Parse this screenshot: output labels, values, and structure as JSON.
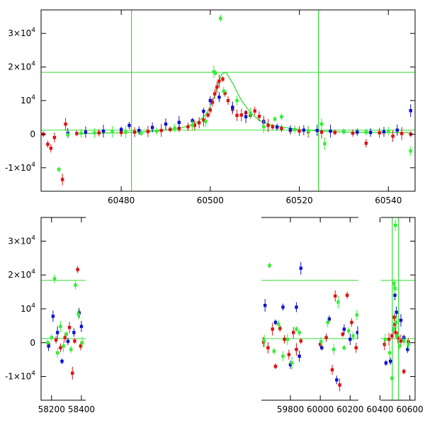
{
  "chart_data": [
    {
      "type": "scatter",
      "title": "",
      "xlabel": "",
      "ylabel": "",
      "xlim": [
        60462,
        60546
      ],
      "ylim": [
        -17000,
        37000
      ],
      "grid": false,
      "x_ticks": [
        {
          "value": 60480,
          "label": "60480"
        },
        {
          "value": 60500,
          "label": "60500"
        },
        {
          "value": 60520,
          "label": "60520"
        },
        {
          "value": 60540,
          "label": "60540"
        }
      ],
      "y_ticks": [
        {
          "value": 30000,
          "label": "3×10",
          "exp": "4"
        },
        {
          "value": 20000,
          "label": "2×10",
          "exp": "4"
        },
        {
          "value": 10000,
          "label": "10",
          "exp": "4"
        },
        {
          "value": 0,
          "label": "0",
          "exp": ""
        },
        {
          "value": -10000,
          "label": "-1×10",
          "exp": "4"
        }
      ],
      "reference_lines": {
        "vertical": [
          60482.3,
          60524.3
        ],
        "horizontal": [
          18400,
          1200
        ],
        "color": "#33dd33"
      },
      "model_curve": {
        "name": "",
        "color": "#33dd33",
        "x": [
          60470,
          60480,
          60485,
          60490,
          60494,
          60497,
          60499,
          60500.5,
          60501.5,
          60502.5,
          60503.5,
          60505,
          60507,
          60509,
          60511,
          60514,
          60520,
          60530,
          60545
        ],
        "y": [
          200,
          400,
          700,
          1200,
          2000,
          3400,
          5800,
          9500,
          14000,
          17800,
          18500,
          15200,
          10000,
          6500,
          4100,
          2600,
          1300,
          600,
          400
        ]
      },
      "series": [
        {
          "name": "",
          "color": "#dd1111",
          "x": [
            60462.5,
            60463.5,
            60464.2,
            60465,
            60466.8,
            60467.5,
            60470,
            60475,
            60480,
            60483,
            60486,
            60489,
            60491,
            60493,
            60495,
            60496.5,
            60497.5,
            60498.5,
            60499.5,
            60500,
            60500.5,
            60501,
            60501.5,
            60502,
            60502.8,
            60503.3,
            60504,
            60505,
            60506,
            60507,
            60508,
            60509,
            60510,
            60511,
            60512,
            60513,
            60514,
            60516,
            60518,
            60520,
            60522,
            60525,
            60528,
            60532,
            60535,
            60538,
            60541,
            60543,
            60545
          ],
          "y": [
            0,
            -3000,
            -4200,
            -1000,
            -13500,
            3000,
            200,
            400,
            500,
            600,
            800,
            1100,
            1400,
            1700,
            2200,
            2600,
            3400,
            4200,
            5700,
            7200,
            9500,
            12000,
            14000,
            15800,
            16400,
            12200,
            10000,
            7400,
            5600,
            5700,
            6400,
            5600,
            6900,
            5300,
            3800,
            2600,
            2200,
            1700,
            1100,
            900,
            700,
            600,
            500,
            300,
            -2700,
            400,
            -600,
            200,
            0
          ]
        },
        {
          "name": "",
          "color": "#1111cc",
          "x": [
            60468,
            60472,
            60476,
            60480,
            60481.8,
            60484,
            60487,
            60490,
            60493,
            60496,
            60498.5,
            60500,
            60502,
            60505,
            60508,
            60512,
            60515,
            60518,
            60521,
            60524,
            60527,
            60530,
            60533,
            60536,
            60539,
            60542,
            60545
          ],
          "y": [
            300,
            600,
            900,
            1400,
            2600,
            1100,
            2000,
            3000,
            3500,
            4000,
            6800,
            10000,
            11000,
            8000,
            5200,
            3600,
            2100,
            1400,
            1200,
            1100,
            900,
            800,
            600,
            500,
            700,
            1200,
            7000
          ]
        },
        {
          "name": "",
          "color": "#33ee33",
          "x": [
            60466,
            60468,
            60471,
            60474,
            60478,
            60481,
            60484.5,
            60488,
            60492,
            60496,
            60499,
            60500.8,
            60501.2,
            60502.3,
            60503,
            60506,
            60509,
            60512,
            60514.5,
            60516,
            60519,
            60522,
            60525,
            60525.7,
            60530,
            60535,
            60540,
            60545
          ],
          "y": [
            -10500,
            -200,
            300,
            400,
            700,
            600,
            300,
            900,
            1800,
            2600,
            3800,
            18600,
            18200,
            34500,
            12800,
            10000,
            6200,
            2200,
            4500,
            5200,
            1400,
            1000,
            3000,
            -2800,
            800,
            600,
            900,
            -5000
          ]
        }
      ]
    },
    {
      "type": "scatter",
      "title": "",
      "xlabel": "",
      "ylabel": "",
      "xlim": [
        58130,
        60635
      ],
      "ylim": [
        -17000,
        37000
      ],
      "grid": false,
      "x_ticks": [
        {
          "value": 58200,
          "label": "58200"
        },
        {
          "value": 58400,
          "label": "58400"
        },
        {
          "value": 59800,
          "label": "59800"
        },
        {
          "value": 60000,
          "label": "60000"
        },
        {
          "value": 60200,
          "label": "60200"
        },
        {
          "value": 60400,
          "label": "60400"
        },
        {
          "value": 60600,
          "label": "60600"
        }
      ],
      "y_ticks": [
        {
          "value": 30000,
          "label": "3×10",
          "exp": "4"
        },
        {
          "value": 20000,
          "label": "2×10",
          "exp": "4"
        },
        {
          "value": 10000,
          "label": "10",
          "exp": "4"
        },
        {
          "value": 0,
          "label": "0",
          "exp": ""
        },
        {
          "value": -10000,
          "label": "-1×10",
          "exp": "4"
        }
      ],
      "reference_lines": {
        "vertical": [
          60482.3,
          60524.3
        ],
        "horizontal": [
          18400,
          1200
        ],
        "color": "#33dd33"
      },
      "series": [
        {
          "name": "",
          "color": "#dd1111",
          "x": [
            58180,
            58230,
            58260,
            58290,
            58320,
            58340,
            58355,
            58375,
            58395,
            59620,
            59650,
            59680,
            59700,
            59730,
            59760,
            59790,
            59820,
            59840,
            59870,
            60000,
            60040,
            60080,
            60100,
            60130,
            60150,
            60180,
            60210,
            60240,
            60430,
            60460,
            60480,
            60495,
            60500,
            60505,
            60520,
            60540,
            60560,
            60590
          ],
          "y": [
            -500,
            800,
            -1500,
            1500,
            4500,
            -9000,
            500,
            21600,
            -1000,
            200,
            -1500,
            4000,
            -7000,
            4200,
            1000,
            -3500,
            3000,
            -2000,
            500,
            -500,
            1500,
            -8000,
            13800,
            -12500,
            2500,
            14000,
            6000,
            -1500,
            -500,
            1000,
            2000,
            7500,
            5500,
            3000,
            1500,
            500,
            -8500,
            300
          ]
        },
        {
          "name": "",
          "color": "#1111cc",
          "x": [
            58180,
            58210,
            58240,
            58270,
            58310,
            58350,
            58385,
            58400,
            59630,
            59700,
            59750,
            59800,
            59840,
            59860,
            59870,
            60010,
            60060,
            60110,
            60160,
            60200,
            60250,
            60440,
            60470,
            60490,
            60500,
            60510,
            60540,
            60560,
            60585
          ],
          "y": [
            -1000,
            7800,
            3000,
            -5500,
            400,
            3000,
            8800,
            4800,
            11000,
            6000,
            10500,
            -6500,
            10500,
            -4000,
            22000,
            -1500,
            7000,
            -11000,
            4000,
            1000,
            3000,
            -6000,
            -5500,
            4000,
            14000,
            9000,
            6600,
            1500,
            -2000
          ]
        },
        {
          "name": "",
          "color": "#33ee33",
          "x": [
            58175,
            58200,
            58220,
            58240,
            58260,
            58280,
            58300,
            58330,
            58360,
            58380,
            58405,
            59625,
            59660,
            59690,
            59720,
            59750,
            59780,
            59810,
            59840,
            59860,
            60005,
            60050,
            60090,
            60120,
            60160,
            60190,
            60220,
            60245,
            60435,
            60465,
            60480,
            60490,
            60495,
            60500,
            60503,
            60508,
            60515,
            60530,
            60560,
            60590
          ],
          "y": [
            0,
            1500,
            18900,
            -3000,
            4800,
            -1000,
            2500,
            -2000,
            17000,
            8400,
            0,
            500,
            22800,
            -2500,
            5500,
            -4000,
            1000,
            -6000,
            4000,
            3000,
            300,
            6000,
            -2000,
            12000,
            -1500,
            3500,
            2000,
            8200,
            1000,
            -3000,
            -10500,
            4000,
            17500,
            16000,
            34700,
            6000,
            2000,
            -1000,
            500,
            -500
          ]
        }
      ]
    }
  ]
}
